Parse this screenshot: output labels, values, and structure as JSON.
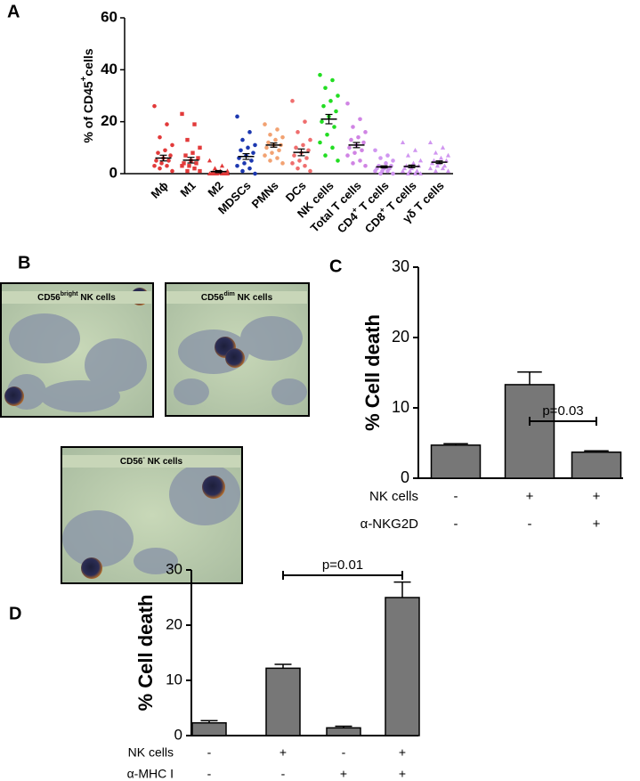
{
  "chart_data": [
    {
      "type": "dotplot",
      "panel": "A",
      "ylabel": [
        "% of CD45",
        "+",
        "cells"
      ],
      "ylim": [
        0,
        60
      ],
      "yticks": [
        0,
        20,
        40,
        60
      ],
      "groups": [
        {
          "label": [
            "M",
            "ϕ"
          ],
          "color": "#e23a3a",
          "marker": "circle",
          "mean": 6,
          "sem": 1.1,
          "points": [
            26,
            19,
            14,
            11,
            9,
            8,
            7,
            6,
            5,
            5,
            4,
            3,
            3,
            2,
            1
          ]
        },
        {
          "label": [
            "M1"
          ],
          "color": "#e23a3a",
          "marker": "square",
          "mean": 5.2,
          "sem": 1.1,
          "points": [
            23,
            19,
            13,
            10,
            8,
            7,
            6,
            5,
            4,
            4,
            3,
            3,
            2,
            1,
            1
          ]
        },
        {
          "label": [
            "M2"
          ],
          "color": "#e23a3a",
          "marker": "triangle",
          "mean": 0.8,
          "sem": 0.4,
          "points": [
            5,
            3,
            2,
            1,
            1,
            0.5,
            0.3,
            0.2,
            0,
            0,
            0,
            0,
            0,
            0,
            0
          ]
        },
        {
          "label": [
            "MDSCs"
          ],
          "color": "#1c38b0",
          "marker": "circle",
          "mean": 6.6,
          "sem": 1.1,
          "points": [
            22,
            16,
            13,
            11,
            10,
            9,
            8,
            7,
            6,
            5,
            4,
            3,
            2,
            1,
            0
          ]
        },
        {
          "label": [
            "PMNs"
          ],
          "color": "#f2a272",
          "marker": "circle",
          "mean": 11,
          "sem": 0.8,
          "points": [
            19,
            17,
            15,
            14,
            13,
            12,
            11,
            11,
            10,
            9,
            8,
            7,
            6,
            5,
            4
          ]
        },
        {
          "label": [
            "DCs"
          ],
          "color": "#ef6e6e",
          "marker": "circle",
          "mean": 8.2,
          "sem": 1.3,
          "points": [
            28,
            20,
            16,
            13,
            11,
            10,
            9,
            8,
            7,
            6,
            5,
            4,
            3,
            2,
            1
          ]
        },
        {
          "label": [
            "NK cells"
          ],
          "color": "#22dd22",
          "marker": "circle",
          "mean": 21,
          "sem": 1.8,
          "points": [
            38,
            36,
            33,
            30,
            28,
            26,
            24,
            22,
            20,
            18,
            15,
            12,
            10,
            7,
            5
          ]
        },
        {
          "label": [
            "Total T cells"
          ],
          "color": "#d084e4",
          "marker": "circle",
          "mean": 11,
          "sem": 1,
          "points": [
            27,
            21,
            18,
            16,
            14,
            13,
            12,
            11,
            10,
            9,
            8,
            7,
            5,
            4,
            3
          ]
        },
        {
          "label": [
            "CD4",
            "+",
            " T cells"
          ],
          "color": "#d096f0",
          "marker": "circle",
          "mean": 2.6,
          "sem": 0.4,
          "points": [
            9,
            7,
            6,
            5,
            4,
            3,
            3,
            2,
            2,
            2,
            1,
            1,
            1,
            0,
            0
          ]
        },
        {
          "label": [
            "CD8",
            "+",
            " T cells"
          ],
          "color": "#d096f0",
          "marker": "triangle",
          "mean": 2.8,
          "sem": 0.5,
          "points": [
            12,
            9,
            7,
            5,
            4,
            3,
            3,
            2,
            2,
            1,
            1,
            1,
            0,
            0,
            0
          ]
        },
        {
          "label": [
            "γδ",
            " T cells"
          ],
          "color": "#d096f0",
          "marker": "triangle",
          "mean": 4.4,
          "sem": 0.5,
          "points": [
            12,
            10,
            8,
            7,
            6,
            5,
            5,
            4,
            4,
            3,
            3,
            2,
            2,
            1,
            1
          ]
        }
      ]
    },
    {
      "type": "bar",
      "panel": "C",
      "ylabel": "% Cell death",
      "color": "#777777",
      "ylim": [
        0,
        30
      ],
      "yticks": [
        0,
        10,
        20,
        30
      ],
      "values": [
        4.7,
        13.3,
        3.7
      ],
      "errors": [
        0.2,
        1.8,
        0.2
      ],
      "annotation": "p=0.03",
      "conditions": [
        {
          "name": "NK cells",
          "signs": [
            "-",
            "+",
            "+"
          ]
        },
        {
          "name": "α-NKG2D",
          "signs": [
            "-",
            "-",
            "+"
          ]
        }
      ]
    },
    {
      "type": "bar",
      "panel": "D",
      "ylabel": "% Cell death",
      "color": "#777777",
      "ylim": [
        0,
        30
      ],
      "yticks": [
        0,
        10,
        20,
        30
      ],
      "values": [
        2.3,
        12.2,
        1.4,
        25
      ],
      "errors": [
        0.4,
        0.7,
        0.3,
        2.8
      ],
      "annotation": "p=0.01",
      "conditions": [
        {
          "name": "NK cells",
          "signs": [
            "-",
            "+",
            "-",
            "+"
          ]
        },
        {
          "name": "α-MHC I",
          "signs": [
            "-",
            "-",
            "+",
            "+"
          ]
        }
      ]
    }
  ],
  "figure_b": {
    "panel": "B",
    "images": [
      [
        "CD56",
        "bright",
        " NK cells"
      ],
      [
        "CD56",
        "dim",
        " NK cells"
      ],
      [
        "CD56",
        "-",
        " NK cells"
      ]
    ]
  }
}
